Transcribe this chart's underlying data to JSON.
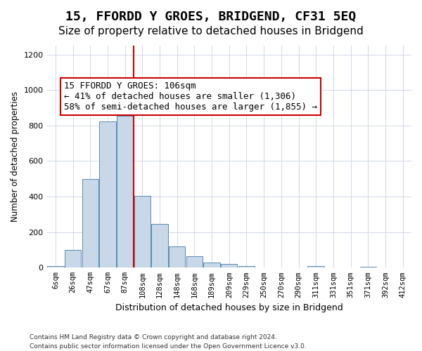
{
  "title": "15, FFORDD Y GROES, BRIDGEND, CF31 5EQ",
  "subtitle": "Size of property relative to detached houses in Bridgend",
  "xlabel": "Distribution of detached houses by size in Bridgend",
  "ylabel": "Number of detached properties",
  "bar_labels": [
    "6sqm",
    "26sqm",
    "47sqm",
    "67sqm",
    "87sqm",
    "108sqm",
    "128sqm",
    "148sqm",
    "168sqm",
    "189sqm",
    "209sqm",
    "229sqm",
    "250sqm",
    "270sqm",
    "290sqm",
    "311sqm",
    "331sqm",
    "351sqm",
    "371sqm",
    "392sqm",
    "412sqm"
  ],
  "bar_values": [
    8,
    100,
    500,
    825,
    855,
    405,
    248,
    120,
    65,
    30,
    20,
    10,
    0,
    0,
    0,
    10,
    0,
    0,
    5,
    0,
    0
  ],
  "bar_color": "#c8d8e8",
  "bar_edge_color": "#5a8ab0",
  "vline_x": 4,
  "vline_color": "#cc0000",
  "annotation_text": "15 FFORDD Y GROES: 106sqm\n← 41% of detached houses are smaller (1,306)\n58% of semi-detached houses are larger (1,855) →",
  "annotation_box_color": "#ffffff",
  "annotation_box_edge_color": "#cc0000",
  "ylim": [
    0,
    1250
  ],
  "yticks": [
    0,
    200,
    400,
    600,
    800,
    1000,
    1200
  ],
  "footer_line1": "Contains HM Land Registry data © Crown copyright and database right 2024.",
  "footer_line2": "Contains public sector information licensed under the Open Government Licence v3.0.",
  "bg_color": "#ffffff",
  "grid_color": "#d0d8e8",
  "title_fontsize": 13,
  "subtitle_fontsize": 11,
  "annotation_fontsize": 9
}
